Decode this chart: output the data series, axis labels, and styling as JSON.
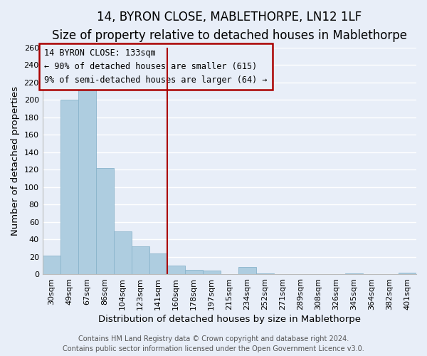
{
  "title": "14, BYRON CLOSE, MABLETHORPE, LN12 1LF",
  "subtitle": "Size of property relative to detached houses in Mablethorpe",
  "xlabel": "Distribution of detached houses by size in Mablethorpe",
  "ylabel": "Number of detached properties",
  "footer_line1": "Contains HM Land Registry data © Crown copyright and database right 2024.",
  "footer_line2": "Contains public sector information licensed under the Open Government Licence v3.0.",
  "categories": [
    "30sqm",
    "49sqm",
    "67sqm",
    "86sqm",
    "104sqm",
    "123sqm",
    "141sqm",
    "160sqm",
    "178sqm",
    "197sqm",
    "215sqm",
    "234sqm",
    "252sqm",
    "271sqm",
    "289sqm",
    "308sqm",
    "326sqm",
    "345sqm",
    "364sqm",
    "382sqm",
    "401sqm"
  ],
  "values": [
    21,
    200,
    213,
    122,
    49,
    32,
    24,
    10,
    5,
    4,
    0,
    8,
    1,
    0,
    0,
    0,
    0,
    1,
    0,
    0,
    2
  ],
  "bar_color": "#aecde0",
  "bar_edge_color": "#8ab4cb",
  "ylim": [
    0,
    260
  ],
  "yticks": [
    0,
    20,
    40,
    60,
    80,
    100,
    120,
    140,
    160,
    180,
    200,
    220,
    240,
    260
  ],
  "vline_x_idx": 6.5,
  "vline_color": "#aa0000",
  "annotation_title": "14 BYRON CLOSE: 133sqm",
  "annotation_line1": "← 90% of detached houses are smaller (615)",
  "annotation_line2": "9% of semi-detached houses are larger (64) →",
  "background_color": "#e8eef8",
  "grid_color": "#ffffff",
  "title_fontsize": 12,
  "subtitle_fontsize": 10,
  "label_fontsize": 9.5,
  "tick_fontsize": 8,
  "footer_fontsize": 7
}
